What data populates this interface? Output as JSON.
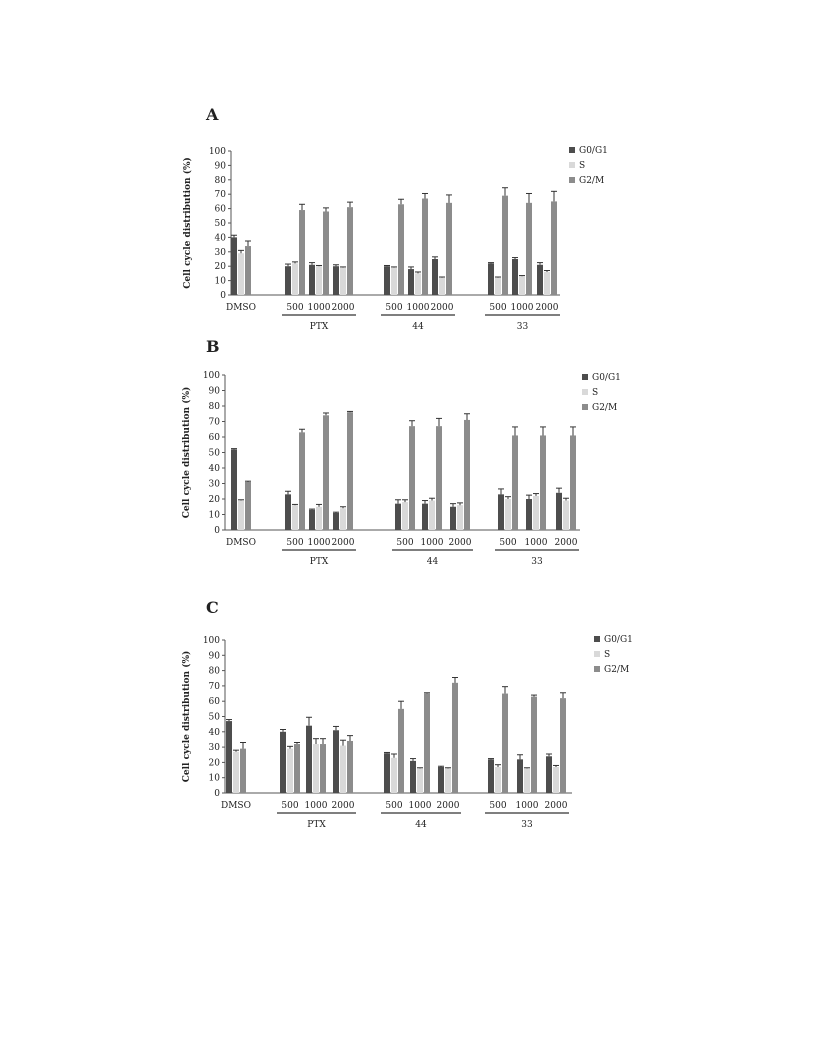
{
  "colors": {
    "G0/G1": "#4d4d4d",
    "S": "#d9d9d9",
    "G2/M": "#8c8c8c",
    "error": "#333333",
    "axis": "#555555"
  },
  "chart_data": [
    {
      "panel": "A",
      "type": "bar",
      "ylabel": "Cell cycle distribution (%)",
      "ylim": [
        0,
        100
      ],
      "yticks": [
        0,
        10,
        20,
        30,
        40,
        50,
        60,
        70,
        80,
        90,
        100
      ],
      "legend": [
        "G0/G1",
        "S",
        "G2/M"
      ],
      "legend_position": "top-right",
      "categories": [
        "DMSO",
        "500",
        "1000",
        "2000",
        "500",
        "1000",
        "2000",
        "500",
        "1000",
        "2000"
      ],
      "groups": [
        {
          "name": "PTX",
          "members": [
            1,
            2,
            3
          ]
        },
        {
          "name": "44",
          "members": [
            4,
            5,
            6
          ]
        },
        {
          "name": "33",
          "members": [
            7,
            8,
            9
          ]
        }
      ],
      "series": [
        {
          "name": "G0/G1",
          "values": [
            40,
            20,
            21,
            20,
            20,
            18,
            25,
            22,
            25,
            21
          ],
          "errors": [
            1.5,
            1.5,
            1.5,
            1,
            0.5,
            1.5,
            1.5,
            0.5,
            1,
            1.5
          ]
        },
        {
          "name": "S",
          "values": [
            29,
            22,
            20,
            19,
            19,
            15,
            12,
            12,
            13,
            16
          ],
          "errors": [
            2,
            1,
            0.5,
            0.5,
            0.5,
            1,
            0.5,
            0.5,
            0.5,
            1
          ]
        },
        {
          "name": "G2/M",
          "values": [
            34,
            59,
            58,
            61,
            63,
            67,
            64,
            69,
            64,
            65
          ],
          "errors": [
            3.5,
            4,
            2.5,
            3.5,
            3.5,
            3.5,
            5.5,
            5.5,
            6.5,
            7
          ]
        }
      ]
    },
    {
      "panel": "B",
      "type": "bar",
      "ylabel": "Cell cycle distribution (%)",
      "ylim": [
        0,
        100
      ],
      "yticks": [
        0,
        10,
        20,
        30,
        40,
        50,
        60,
        70,
        80,
        90,
        100
      ],
      "legend": [
        "G0/G1",
        "S",
        "G2/M"
      ],
      "legend_position": "top-right",
      "categories": [
        "DMSO",
        "500",
        "1000",
        "2000",
        "500",
        "1000",
        "2000",
        "500",
        "1000",
        "2000"
      ],
      "groups": [
        {
          "name": "PTX",
          "members": [
            1,
            2,
            3
          ]
        },
        {
          "name": "44",
          "members": [
            4,
            5,
            6
          ]
        },
        {
          "name": "33",
          "members": [
            7,
            8,
            9
          ]
        }
      ],
      "series": [
        {
          "name": "G0/G1",
          "values": [
            52,
            23,
            13,
            11,
            17,
            17,
            15,
            23,
            20,
            24
          ],
          "errors": [
            0.5,
            2,
            0.5,
            0.5,
            2.5,
            2,
            2,
            3.5,
            2.5,
            3
          ]
        },
        {
          "name": "S",
          "values": [
            19,
            16,
            15,
            14,
            18,
            19,
            16,
            20,
            22,
            19
          ],
          "errors": [
            0.5,
            0.5,
            1.5,
            1,
            1.5,
            1.5,
            1.5,
            1.5,
            1.5,
            1.5
          ]
        },
        {
          "name": "G2/M",
          "values": [
            31,
            63,
            74,
            76,
            67,
            67,
            71,
            61,
            61,
            61
          ],
          "errors": [
            0.5,
            2,
            1.5,
            0.5,
            3.5,
            5,
            4,
            5.5,
            5.5,
            5.5
          ]
        }
      ]
    },
    {
      "panel": "C",
      "type": "bar",
      "ylabel": "Cell cycle distribution (%)",
      "ylim": [
        0,
        100
      ],
      "yticks": [
        0,
        10,
        20,
        30,
        40,
        50,
        60,
        70,
        80,
        90,
        100
      ],
      "legend": [
        "G0/G1",
        "S",
        "G2/M"
      ],
      "legend_position": "top-right",
      "categories": [
        "DMSO",
        "500",
        "1000",
        "2000",
        "500",
        "1000",
        "2000",
        "500",
        "1000",
        "2000"
      ],
      "groups": [
        {
          "name": "PTX",
          "members": [
            1,
            2,
            3
          ]
        },
        {
          "name": "44",
          "members": [
            4,
            5,
            6
          ]
        },
        {
          "name": "33",
          "members": [
            7,
            8,
            9
          ]
        }
      ],
      "series": [
        {
          "name": "G0/G1",
          "values": [
            47,
            40,
            44,
            41,
            26,
            21,
            17,
            22,
            22,
            24
          ],
          "errors": [
            1,
            1.5,
            5.5,
            2.5,
            0.5,
            1.5,
            0.5,
            0.5,
            3,
            1.5
          ]
        },
        {
          "name": "S",
          "values": [
            27,
            29,
            32,
            31,
            23,
            16,
            16,
            17,
            16,
            17
          ],
          "errors": [
            1,
            1.5,
            3.5,
            3.5,
            2.5,
            0.5,
            0.5,
            1.5,
            0.5,
            1
          ]
        },
        {
          "name": "G2/M",
          "values": [
            29,
            32,
            32,
            34,
            55,
            65,
            72,
            65,
            63,
            62
          ],
          "errors": [
            4,
            1,
            3.5,
            3.5,
            5,
            0.5,
            3.5,
            4.5,
            1,
            3.5
          ]
        }
      ]
    }
  ]
}
